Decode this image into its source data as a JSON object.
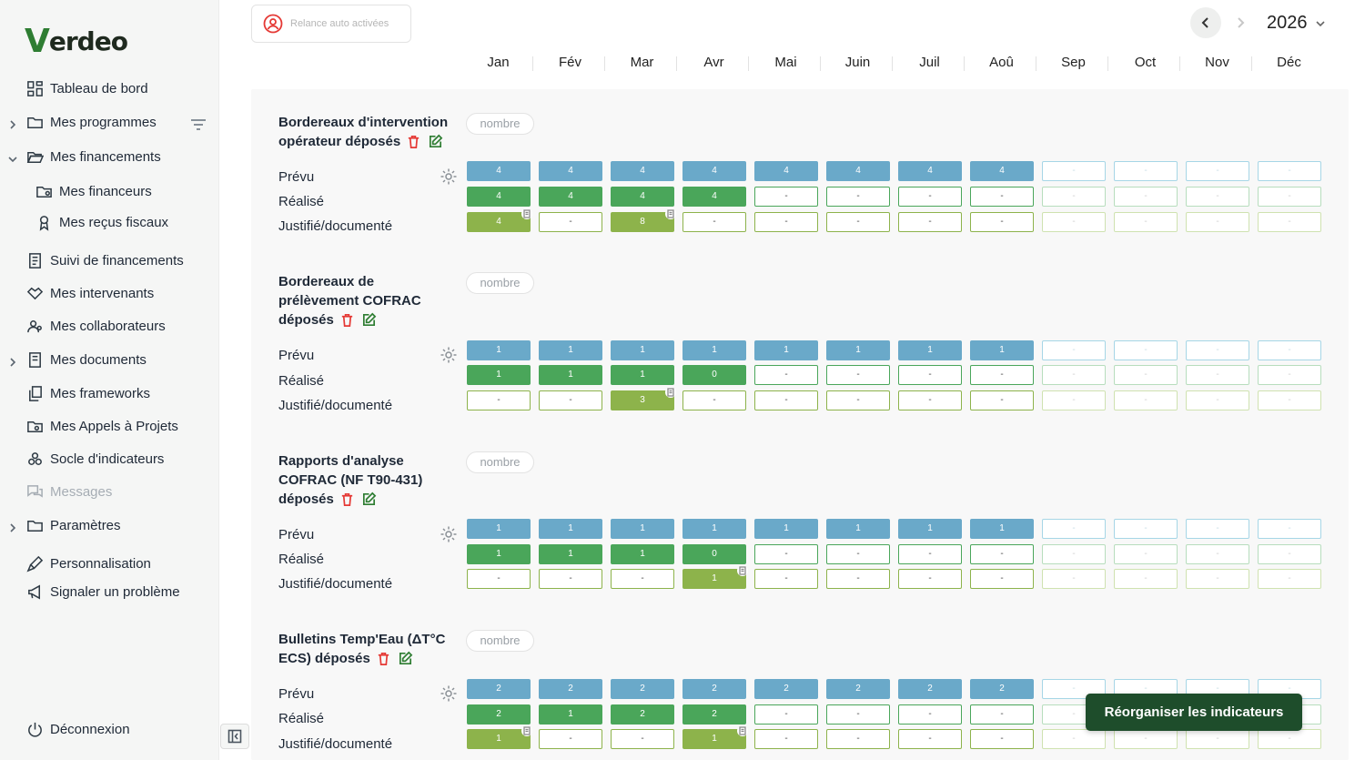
{
  "brand": {
    "logo_v": "V",
    "logo_rest": "erdeo",
    "accent": "#2e7d32"
  },
  "sidebar": {
    "items": [
      {
        "label": "Tableau de bord",
        "icon": "dashboard-icon"
      },
      {
        "label": "Mes programmes",
        "icon": "folder-icon"
      },
      {
        "label": "Mes financements",
        "icon": "folder-open-icon"
      },
      {
        "label": "Mes financeurs",
        "icon": "folder-user-icon"
      },
      {
        "label": "Mes reçus fiscaux",
        "icon": "award-icon"
      },
      {
        "label": "Suivi de financements",
        "icon": "receipt-icon"
      },
      {
        "label": "Mes intervenants",
        "icon": "handshake-icon"
      },
      {
        "label": "Mes collaborateurs",
        "icon": "users-icon"
      },
      {
        "label": "Mes documents",
        "icon": "documents-icon"
      },
      {
        "label": "Mes frameworks",
        "icon": "copy-icon"
      },
      {
        "label": "Mes Appels à Projets",
        "icon": "folder-search-icon"
      },
      {
        "label": "Socle d'indicateurs",
        "icon": "boxes-icon"
      },
      {
        "label": "Messages",
        "icon": "messages-icon"
      },
      {
        "label": "Paramètres",
        "icon": "folder-icon"
      },
      {
        "label": "Personnalisation",
        "icon": "brush-icon"
      },
      {
        "label": "Signaler un problème",
        "icon": "megaphone-icon"
      }
    ],
    "logout": "Déconnexion"
  },
  "toolbar": {
    "relance_label": "Relance auto activées",
    "year": "2026"
  },
  "months": [
    "Jan",
    "Fév",
    "Mar",
    "Avr",
    "Mai",
    "Juin",
    "Juil",
    "Aoû",
    "Sep",
    "Oct",
    "Nov",
    "Déc"
  ],
  "row_labels": {
    "prevu": "Prévu",
    "realise": "Réalisé",
    "justifie": "Justifié/documenté"
  },
  "empty_value": "-",
  "indicators": [
    {
      "title_lines": [
        "Bordereaux d'intervention",
        "opérateur déposés"
      ],
      "tag": "nombre",
      "prevu": [
        "4",
        "4",
        "4",
        "4",
        "4",
        "4",
        "4",
        "4",
        "-",
        "-",
        "-",
        "-"
      ],
      "realise": [
        "4",
        "4",
        "4",
        "4",
        "-",
        "-",
        "-",
        "-",
        "-",
        "-",
        "-",
        "-"
      ],
      "justifie": [
        "4",
        "-",
        "8",
        "-",
        "-",
        "-",
        "-",
        "-",
        "-",
        "-",
        "-",
        "-"
      ],
      "justifie_docs": [
        true,
        false,
        true,
        false,
        false,
        false,
        false,
        false,
        false,
        false,
        false,
        false
      ]
    },
    {
      "title_lines": [
        "Bordereaux de",
        "prélèvement COFRAC",
        "déposés"
      ],
      "tag": "nombre",
      "prevu": [
        "1",
        "1",
        "1",
        "1",
        "1",
        "1",
        "1",
        "1",
        "-",
        "-",
        "-",
        "-"
      ],
      "realise": [
        "1",
        "1",
        "1",
        "0",
        "-",
        "-",
        "-",
        "-",
        "-",
        "-",
        "-",
        "-"
      ],
      "justifie": [
        "-",
        "-",
        "3",
        "-",
        "-",
        "-",
        "-",
        "-",
        "-",
        "-",
        "-",
        "-"
      ],
      "justifie_docs": [
        false,
        false,
        true,
        false,
        false,
        false,
        false,
        false,
        false,
        false,
        false,
        false
      ]
    },
    {
      "title_lines": [
        "Rapports d'analyse",
        "COFRAC (NF T90-431)",
        "déposés"
      ],
      "tag": "nombre",
      "prevu": [
        "1",
        "1",
        "1",
        "1",
        "1",
        "1",
        "1",
        "1",
        "-",
        "-",
        "-",
        "-"
      ],
      "realise": [
        "1",
        "1",
        "1",
        "0",
        "-",
        "-",
        "-",
        "-",
        "-",
        "-",
        "-",
        "-"
      ],
      "justifie": [
        "-",
        "-",
        "-",
        "1",
        "-",
        "-",
        "-",
        "-",
        "-",
        "-",
        "-",
        "-"
      ],
      "justifie_docs": [
        false,
        false,
        false,
        true,
        false,
        false,
        false,
        false,
        false,
        false,
        false,
        false
      ]
    },
    {
      "title_lines": [
        "Bulletins Temp'Eau (ΔT°C",
        "ECS) déposés"
      ],
      "tag": "nombre",
      "prevu": [
        "2",
        "2",
        "2",
        "2",
        "2",
        "2",
        "2",
        "2",
        "-",
        "-",
        "-",
        "-"
      ],
      "realise": [
        "2",
        "1",
        "2",
        "2",
        "-",
        "-",
        "-",
        "-",
        "-",
        "-",
        "-",
        "-"
      ],
      "justifie": [
        "1",
        "-",
        "-",
        "1",
        "-",
        "-",
        "-",
        "-",
        "-",
        "-",
        "-",
        "-"
      ],
      "justifie_docs": [
        true,
        false,
        false,
        true,
        false,
        false,
        false,
        false,
        false,
        false,
        false,
        false
      ]
    }
  ],
  "reorganize_label": "Réorganiser les indicateurs"
}
